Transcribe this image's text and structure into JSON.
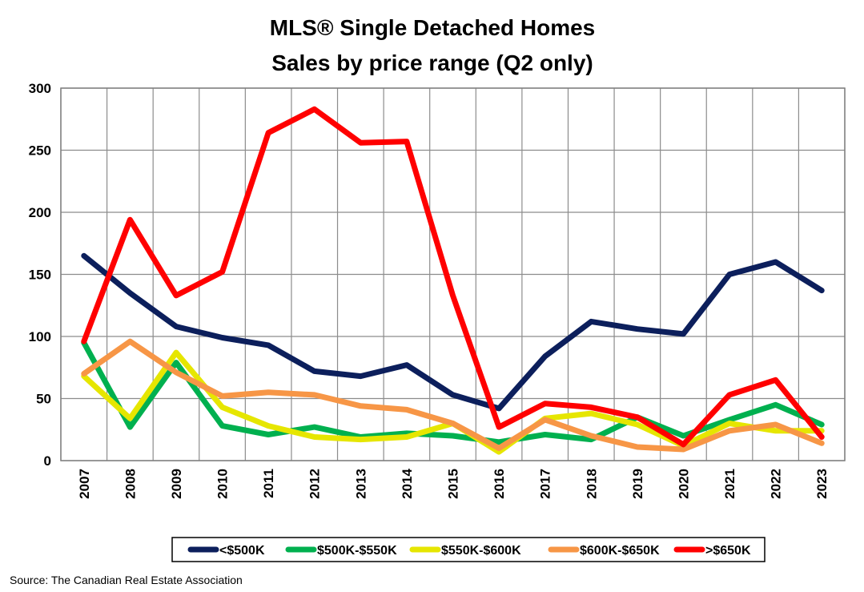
{
  "chart_data": {
    "type": "line",
    "title": "MLS® Single Detached Homes",
    "subtitle": "Sales by price range (Q2 only)",
    "xlabel": "",
    "ylabel": "",
    "x": [
      "2007",
      "2008",
      "2009",
      "2010",
      "2011",
      "2012",
      "2013",
      "2014",
      "2015",
      "2016",
      "2017",
      "2018",
      "2019",
      "2020",
      "2021",
      "2022",
      "2023"
    ],
    "ylim": [
      0,
      300
    ],
    "yticks": [
      0,
      50,
      100,
      150,
      200,
      250,
      300
    ],
    "grid": true,
    "legend_position": "bottom",
    "series": [
      {
        "name": "<$500K",
        "color": "#0c1f5c",
        "values": [
          165,
          135,
          108,
          99,
          93,
          72,
          68,
          77,
          53,
          42,
          84,
          112,
          106,
          102,
          150,
          160,
          137
        ]
      },
      {
        "name": "$500K-$550K",
        "color": "#00b04f",
        "values": [
          95,
          27,
          79,
          28,
          21,
          27,
          19,
          22,
          20,
          15,
          21,
          17,
          35,
          20,
          33,
          45,
          29
        ]
      },
      {
        "name": "$550K-$600K",
        "color": "#e6e600",
        "values": [
          68,
          34,
          87,
          43,
          28,
          19,
          17,
          19,
          30,
          7,
          34,
          38,
          29,
          12,
          30,
          24,
          24
        ]
      },
      {
        "name": "$600K-$650K",
        "color": "#f79646",
        "values": [
          70,
          96,
          71,
          52,
          55,
          53,
          44,
          41,
          30,
          10,
          33,
          20,
          11,
          9,
          24,
          29,
          14
        ]
      },
      {
        "name": ">$650K",
        "color": "#ff0000",
        "values": [
          96,
          194,
          133,
          152,
          264,
          283,
          256,
          257,
          133,
          27,
          46,
          43,
          35,
          13,
          53,
          65,
          19
        ]
      }
    ]
  },
  "source": "Source: The Canadian Real Estate Association"
}
